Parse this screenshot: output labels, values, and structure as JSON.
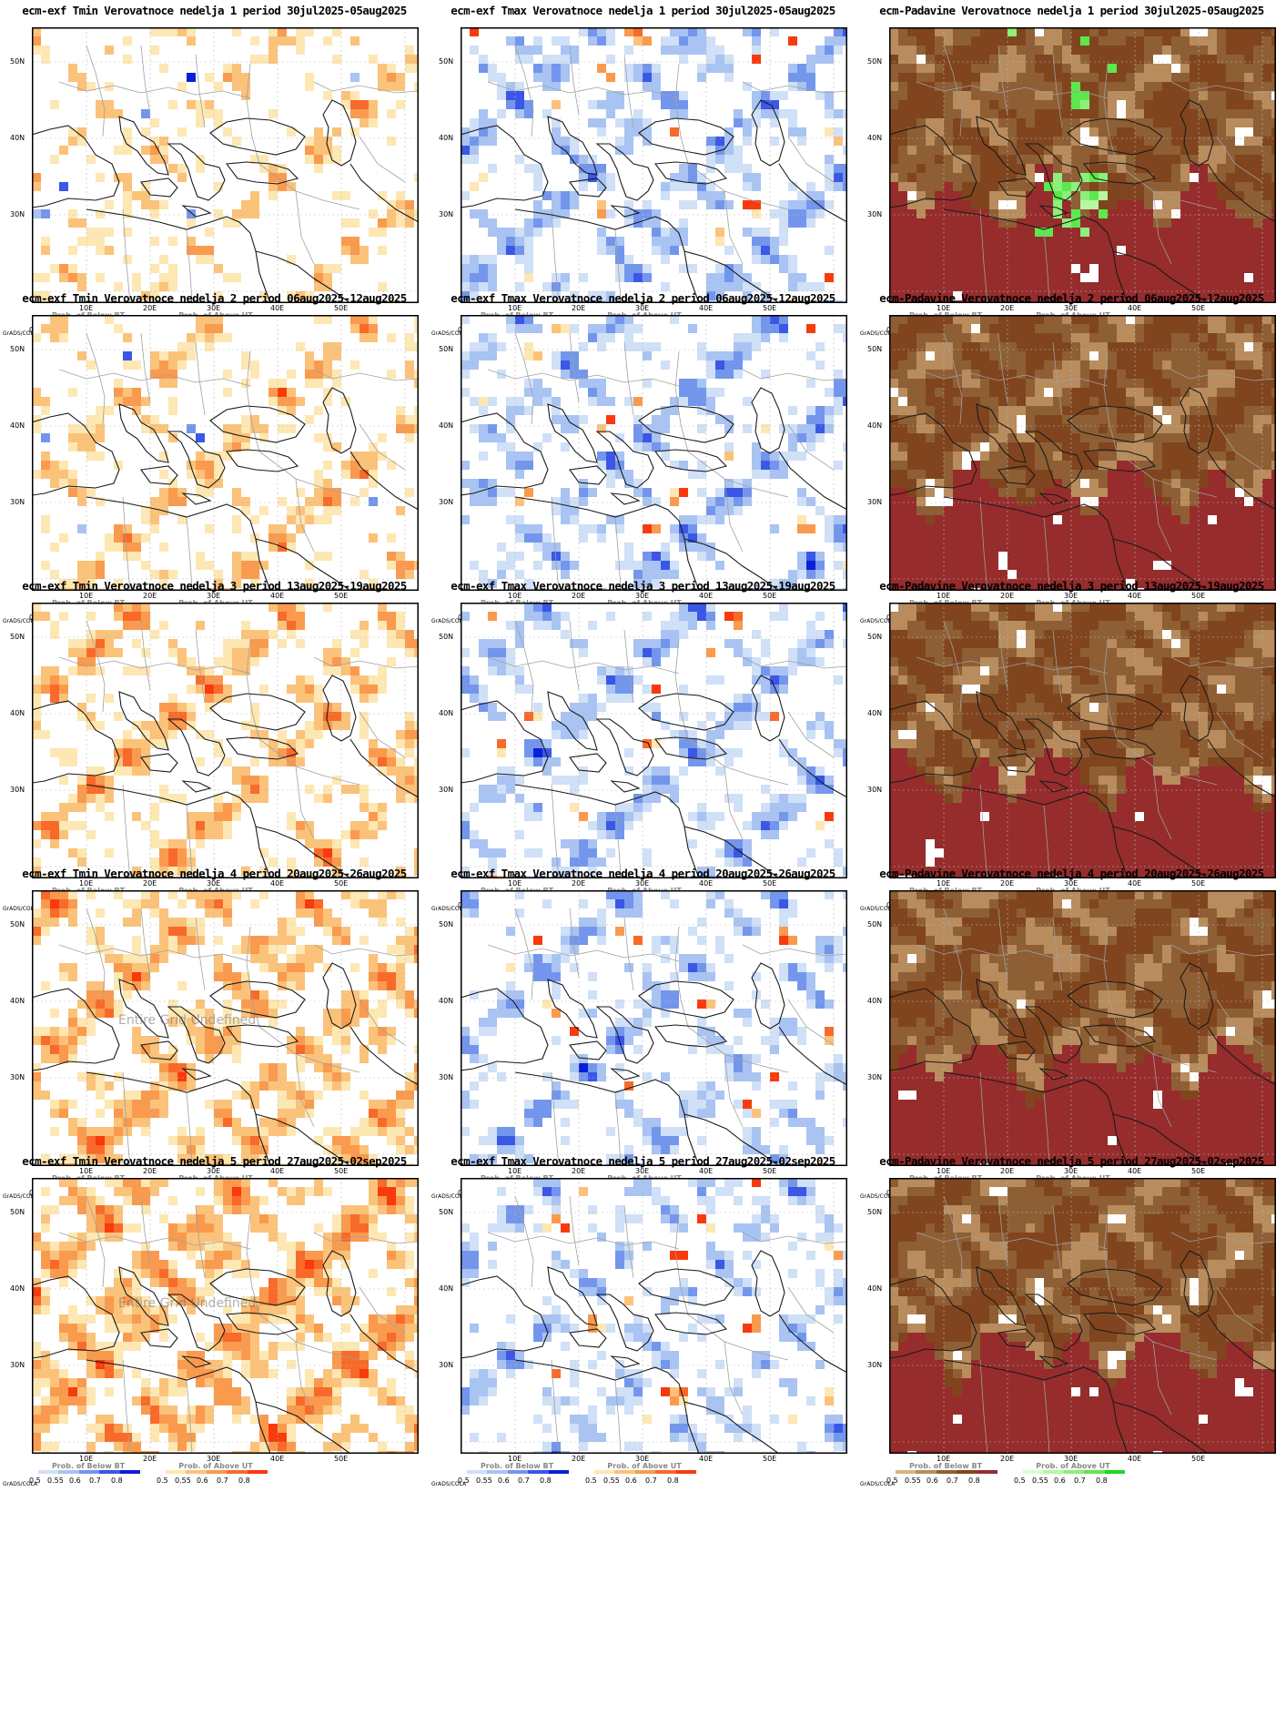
{
  "axes": {
    "lat_labels": [
      "50N",
      "40N",
      "30N"
    ],
    "lon_labels": [
      "10E",
      "20E",
      "30E",
      "40E",
      "50E"
    ]
  },
  "legend": {
    "grads_label": "GrADS/COLA",
    "below_title": "Prob. of Below BT",
    "above_title": "Prob. of Above UT",
    "ticks": [
      "0.5",
      "0.55",
      "0.6",
      "0.7",
      "0.8"
    ]
  },
  "colors": {
    "blue": [
      "#cfe0f7",
      "#a9c3f2",
      "#7396ec",
      "#3a57e6",
      "#0b1fd8"
    ],
    "red": [
      "#fde7b3",
      "#fbc27a",
      "#f99a4e",
      "#f86a2a",
      "#f83a0c"
    ],
    "brown": [
      "#d8b483",
      "#b88c5c",
      "#8e5f35",
      "#80451e",
      "#962c2c"
    ],
    "green": [
      "#ddfbd1",
      "#b6f7a5",
      "#8cf07a",
      "#5ce84c",
      "#1ed71e"
    ]
  },
  "rows": [
    {
      "week": "1",
      "panels": [
        {
          "title": "ecm-exf Tmin Verovatnoce nedelja 1 period 30jul2025-05aug2025",
          "kind": "tmin",
          "legends": [
            "below",
            "above"
          ],
          "overlay": ""
        },
        {
          "title": "ecm-exf Tmax Verovatnoce nedelja 1 period 30jul2025-05aug2025",
          "kind": "tmax",
          "legends": [
            "below",
            "above"
          ],
          "overlay": ""
        },
        {
          "title": "ecm-Padavine Verovatnoce nedelja 1 period 30jul2025-05aug2025",
          "kind": "padavine",
          "legends": [
            "below",
            "above"
          ],
          "overlay": ""
        }
      ]
    },
    {
      "week": "2",
      "panels": [
        {
          "title": "ecm-exf Tmin Verovatnoce nedelja 2 period 06aug2025-12aug2025",
          "kind": "tmin",
          "legends": [
            "below",
            "above"
          ],
          "overlay": ""
        },
        {
          "title": "ecm-exf Tmax Verovatnoce nedelja 2 period 06aug2025-12aug2025",
          "kind": "tmax",
          "legends": [
            "below",
            "above"
          ],
          "overlay": ""
        },
        {
          "title": "ecm-Padavine Verovatnoce nedelja 2 period 06aug2025-12aug2025",
          "kind": "padavine",
          "legends": [
            "below",
            "above"
          ],
          "overlay": ""
        }
      ]
    },
    {
      "week": "3",
      "panels": [
        {
          "title": "ecm-exf Tmin Verovatnoce nedelja 3 period 13aug2025-19aug2025",
          "kind": "tmin",
          "legends": [
            "below-title-only",
            "above"
          ],
          "overlay": ""
        },
        {
          "title": "ecm-exf Tmax Verovatnoce nedelja 3 period 13aug2025-19aug2025",
          "kind": "tmax",
          "legends": [
            "below",
            "above"
          ],
          "overlay": ""
        },
        {
          "title": "ecm-Padavine Verovatnoce nedelja 3 period 13aug2025-19aug2025",
          "kind": "padavine",
          "legends": [
            "below",
            "above"
          ],
          "overlay": ""
        }
      ]
    },
    {
      "week": "4",
      "panels": [
        {
          "title": "ecm-exf Tmin Verovatnoce nedelja 4 period 20aug2025-26aug2025",
          "kind": "tmin",
          "legends": [
            "below",
            "above"
          ],
          "overlay": "Entire Grid Undefined"
        },
        {
          "title": "ecm-exf Tmax Verovatnoce nedelja 4 period 20aug2025-26aug2025",
          "kind": "tmax",
          "legends": [
            "below",
            "above"
          ],
          "overlay": ""
        },
        {
          "title": "ecm-Padavine Verovatnoce nedelja 4 period 20aug2025-26aug2025",
          "kind": "padavine",
          "legends": [
            "below",
            "above"
          ],
          "overlay": ""
        }
      ]
    },
    {
      "week": "5",
      "panels": [
        {
          "title": "ecm-exf Tmin Verovatnoce nedelja 5 period 27aug2025-02sep2025",
          "kind": "tmin",
          "legends": [
            "below",
            "above"
          ],
          "overlay": "Entire Grid Undefined"
        },
        {
          "title": "ecm-exf Tmax Verovatnoce nedelja 5 period 27aug2025-02sep2025",
          "kind": "tmax",
          "legends": [
            "below",
            "above"
          ],
          "overlay": ""
        },
        {
          "title": "ecm-Padavine Verovatnoce nedelja 5 period 27aug2025-02sep2025",
          "kind": "padavine",
          "legends": [
            "below",
            "above"
          ],
          "overlay": ""
        }
      ]
    }
  ]
}
